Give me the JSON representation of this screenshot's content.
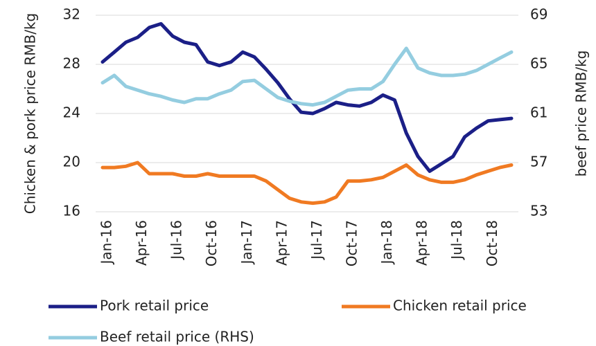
{
  "chart_data": {
    "type": "line",
    "y_label": "Chicken & pork price RMB/kg",
    "y2_label": "beef price RMB/kg",
    "categories": [
      "Jan-16",
      null,
      null,
      "Apr-16",
      null,
      null,
      "Jul-16",
      null,
      null,
      "Oct-16",
      null,
      null,
      "Jan-17",
      null,
      null,
      "Apr-17",
      null,
      null,
      "Jul-17",
      null,
      null,
      "Oct-17",
      null,
      null,
      "Jan-18",
      null,
      null,
      "Apr-18",
      null,
      null,
      "Jul-18",
      null,
      null,
      "Oct-18",
      null,
      null
    ],
    "series": [
      {
        "name": "Pork retail price",
        "color": "#1b1f87",
        "values": [
          28.2,
          29.0,
          29.8,
          30.2,
          31.0,
          31.3,
          30.3,
          29.8,
          29.6,
          28.2,
          27.9,
          28.2,
          29.0,
          28.6,
          27.6,
          26.5,
          25.2,
          24.1,
          24.0,
          24.4,
          24.9,
          24.7,
          24.6,
          24.9,
          25.5,
          25.1,
          22.4,
          20.5,
          19.3,
          19.9,
          20.5,
          22.1,
          22.8,
          23.4,
          23.5,
          23.6
        ]
      },
      {
        "name": "Chicken retail price",
        "color": "#f07a22",
        "values": [
          19.6,
          19.6,
          19.7,
          20.0,
          19.1,
          19.1,
          19.1,
          18.9,
          18.9,
          19.1,
          18.9,
          18.9,
          18.9,
          18.9,
          18.5,
          17.8,
          17.1,
          16.8,
          16.7,
          16.8,
          17.2,
          18.5,
          18.5,
          18.6,
          18.8,
          19.3,
          19.8,
          19.0,
          18.6,
          18.4,
          18.4,
          18.6,
          19.0,
          19.3,
          19.6,
          19.8
        ]
      },
      {
        "name": "Beef retail price (RHS)",
        "color": "#94cde0",
        "axis": "y2",
        "values": [
          63.5,
          64.1,
          63.2,
          62.9,
          62.6,
          62.4,
          62.1,
          61.9,
          62.2,
          62.2,
          62.6,
          62.9,
          63.6,
          63.7,
          63.0,
          62.3,
          62.0,
          61.8,
          61.7,
          61.9,
          62.4,
          62.9,
          63.0,
          63.0,
          63.6,
          65.0,
          66.3,
          64.7,
          64.3,
          64.1,
          64.1,
          64.2,
          64.5,
          65.0,
          65.5,
          66.0
        ]
      }
    ],
    "ylim": [
      16,
      32
    ],
    "yticks": [
      16,
      20,
      24,
      28,
      32
    ],
    "y2lim": [
      53,
      69
    ],
    "y2ticks": [
      53,
      57,
      61,
      65,
      69
    ],
    "grid": true
  }
}
